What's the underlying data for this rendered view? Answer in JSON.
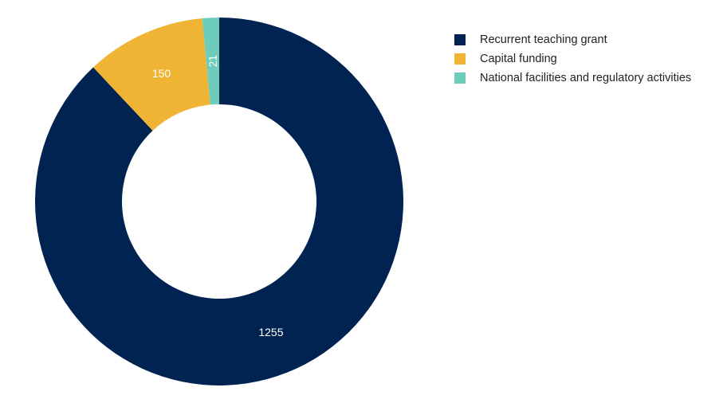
{
  "chart_data": {
    "type": "pie",
    "variant": "donut",
    "categories": [
      "Recurrent teaching grant",
      "Capital funding",
      "National facilities and regulatory activities"
    ],
    "values": [
      1255,
      150,
      21
    ],
    "colors": [
      "#002352",
      "#F0B435",
      "#6ECDBA"
    ],
    "data_labels": [
      "1255",
      "150",
      "21"
    ],
    "legend_position": "top-right",
    "title": "",
    "start_angle_deg": 0,
    "direction": "clockwise"
  }
}
